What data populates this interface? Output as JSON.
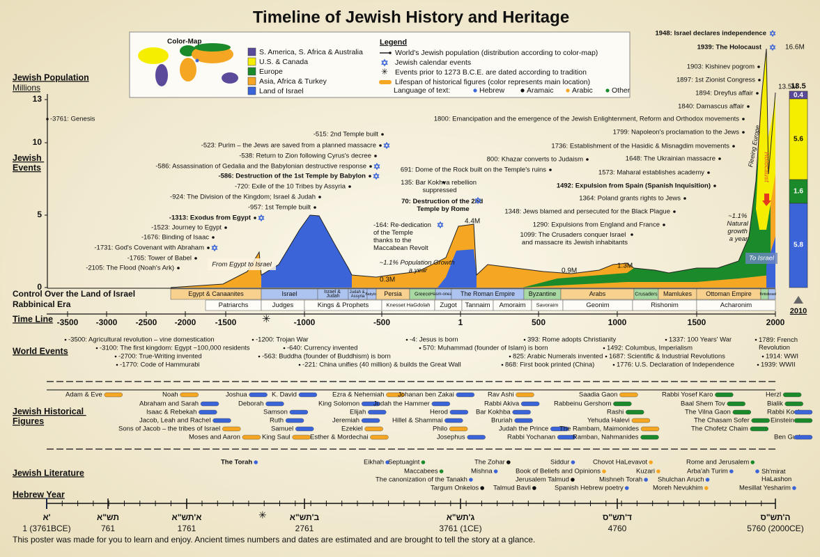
{
  "title": "Timeline of Jewish History and Heritage",
  "color_map": {
    "title": "Color-Map",
    "items": [
      "S. America, S. Africa & Australia",
      "U.S. & Canada",
      "Europe",
      "Asia, Africa & Turkey",
      "Land of Israel"
    ]
  },
  "legend": {
    "title": "Legend",
    "items": [
      "World's Jewish population (distribution according to color-map)",
      "Jewish calendar events",
      "Events prior to 1273 B.C.E. are dated according to tradition",
      "Lifespan of historical figures (color represents main location)"
    ],
    "languages_label": "Language of text:",
    "languages": [
      "Hebrew",
      "Aramaic",
      "Arabic",
      "Other"
    ]
  },
  "population": {
    "axis_title": "Jewish Population",
    "axis_unit": "Millions",
    "ticks": [
      13,
      10,
      5,
      0
    ],
    "labels": [
      "0.3M",
      "4.4M",
      "0.9M",
      "1.3M",
      "13.5M",
      "16.6M"
    ],
    "annotations": [
      "From Egypt to Israel",
      "~1.1% Population Growth a year",
      "~1.1% Natural growth a year",
      "Fleeing Europe",
      "Holocaust",
      "To Israel"
    ],
    "bar_total": "13.5",
    "bar_segments": [
      "0.4",
      "5.6",
      "1.6",
      "5.8"
    ],
    "bar_year": "2010"
  },
  "jewish_events": {
    "label": "Jewish Events",
    "items": [
      "-3761: Genesis",
      "-2105: The Flood (Noah's Ark)",
      "-1765: Tower of Babel",
      "-1731: God's Covenant with Abraham",
      "-1676: Binding of Isaac",
      "-1523: Journey to Egypt",
      "-1313: Exodus from Egypt",
      "-957: 1st Temple built",
      "-924: The Division of the Kingdom; Israel & Judah",
      "-720: Exile of the 10 Tribes by Assyria",
      "-586: Destruction of the 1st Temple by Babylon",
      "-586: Assassination of Gedalia and the Babylonian destructive response",
      "-538: Return to Zion following Cyrus's decree",
      "-523: Purim – the Jews are saved from a planned massacre",
      "-515: 2nd Temple built",
      "-164: Re-dedication of the Temple thanks to the Maccabean Revolt",
      "70: Destruction of the 2nd Temple by Rome",
      "135: Bar Kokhva rebellion suppressed",
      "691: Dome of the Rock built on the Temple's ruins",
      "800: Khazar converts to Judaism",
      "1099: The Crusaders conquer Israel and massacre its Jewish inhabitants",
      "1290: Expulsions from England and France",
      "1348: Jews blamed and persecuted for the Black Plague",
      "1364: Poland grants rights to Jews",
      "1492: Expulsion from Spain (Spanish Inquisition)",
      "1573: Maharal establishes academy",
      "1648: The Ukrainian massacre",
      "1736: Establishment of the Hasidic & Misnagdim movements",
      "1799: Napoleon's proclamation to the Jews",
      "1800: Emancipation and the emergence of the Jewish Enlightenment, Reform and Orthodox movements",
      "1840: Damascus affair",
      "1894: Dreyfus affair",
      "1897: 1st Zionist Congress",
      "1903: Kishinev pogrom",
      "1939: The Holocaust",
      "1948: Israel declares independence"
    ]
  },
  "control": {
    "label": "Control Over the Land of Israel",
    "items": [
      "Egypt & Canaanites",
      "Israel",
      "Israel & Judah",
      "Judah & Assyria",
      "Babylon",
      "Persia",
      "Greece",
      "Hasm-oneans",
      "The Roman Empire",
      "Byzantine",
      "Arabs",
      "Crusaders",
      "Mamlukes",
      "Ottoman Empire",
      "British",
      "Israel"
    ]
  },
  "rabbinical": {
    "label": "Rabbinical Era",
    "items": [
      "Patriarchs",
      "Judges",
      "Kings & Prophets",
      "Knesset HaGdolah",
      "Zugot",
      "Tannaim",
      "Amoraim",
      "Savoraim",
      "Geonim",
      "Rishonim",
      "Acharonim"
    ]
  },
  "timeline": {
    "label": "Time Line",
    "ticks": [
      -3500,
      -3000,
      -2500,
      -2000,
      -1500,
      -1000,
      -500,
      1,
      500,
      1000,
      1500,
      2000
    ]
  },
  "world_events": {
    "label": "World Events",
    "items": [
      "-3500: Agricultural revolution – vine domestication",
      "-3100: The first kingdom:  Egypt ~100,000 residents",
      "-2700: True-Writing invented",
      "-1770: Code of Hammurabi",
      "-1200: Trojan War",
      "-640: Currency invented",
      "-563: Buddha (founder of Buddhism) is born",
      "-221: China unifies (40 million) & builds the Great Wall",
      "-4: Jesus is born",
      "570: Muhammad (founder of Islam) is born",
      "393: Rome adopts Christianity",
      "825: Arabic Numerals invented",
      "868: First book printed (China)",
      "1337: 100 Years' War",
      "1492: Columbus, Imperialism",
      "1687: Scientific & Industrial Revolutions",
      "1776: U.S. Declaration of Independence",
      "1789: French Revolution",
      "1914: WWI",
      "1939: WWII"
    ]
  },
  "figures": {
    "label": "Jewish Historical Figures",
    "items": [
      "Adam & Eve",
      "Noah",
      "Abraham and Sarah",
      "Isaac & Rebekah",
      "Jacob, Leah and Rachel",
      "Sons of Jacob – the tribes of Israel",
      "Moses and Aaron",
      "Joshua",
      "K. David",
      "Deborah",
      "Samson",
      "Ruth",
      "Samuel",
      "King Saul",
      "Ezra & Nehemiah",
      "King Solomon",
      "Elijah",
      "Jeremiah",
      "Ezekiel",
      "Esther & Mordechai",
      "Johanan ben Zakai",
      "Judah the Hammer",
      "Herod",
      "Hillel & Shammai",
      "Philo",
      "Josephus",
      "Rav Ashi",
      "Rabbi Akiva",
      "Bar Kokhba",
      "Bruriah",
      "Judah the Prince",
      "Rabbi Yochanan",
      "Saadia Gaon",
      "Rabbeinu Gershom",
      "Rashi",
      "Yehuda Halevi",
      "The Rambam, Maimonides",
      "Ramban, Nahmanides",
      "Rabbi Yosef Karo",
      "Baal Shem Tov",
      "The Vilna Gaon",
      "The Chasam Sofer",
      "The Chofetz Chaim",
      "Herzl",
      "Bialik",
      "Rabbi Kook",
      "Einstein",
      "Ben Gurion"
    ]
  },
  "literature": {
    "label": "Jewish Literature",
    "items": [
      "The Torah",
      "Eikhah",
      "Septuagint",
      "Maccabees",
      "The canonization of the Tanakh",
      "Targum Onkelos",
      "The Zohar",
      "Mishna",
      "Jerusalem Talmud",
      "Talmud Bavli",
      "Siddur",
      "Chovot HaLevavot",
      "Book of Beliefs and Opinions",
      "Mishneh Torah",
      "Spanish Hebrew poetry",
      "Kuzari",
      "Moreh Nevukhim",
      "Rome and Jerusalem",
      "Arba'ah Turim",
      "Shulchan Aruch",
      "Sh'mirat HaLashon",
      "Mesillat Yesharim"
    ]
  },
  "hebrew_year": {
    "label": "Hebrew Year",
    "ticks": [
      {
        "hebrew": "א'",
        "year": "1 (3761BCE)"
      },
      {
        "hebrew": "תש\"א",
        "year": "761"
      },
      {
        "hebrew": "א'תש\"א",
        "year": "1761"
      },
      {
        "hebrew": "ב'תש\"א",
        "year": "2761"
      },
      {
        "hebrew": "ג'תש\"א",
        "year": "3761 (1CE)"
      },
      {
        "hebrew": "ד'תש\"ס",
        "year": "4760"
      },
      {
        "hebrew": "ה'תש\"ס",
        "year": "5760 (2000CE)"
      }
    ]
  },
  "footer": "This poster was made for you to learn and enjoy. Ancient times numbers and dates are estimated and are brought to tell the story at a glance."
}
